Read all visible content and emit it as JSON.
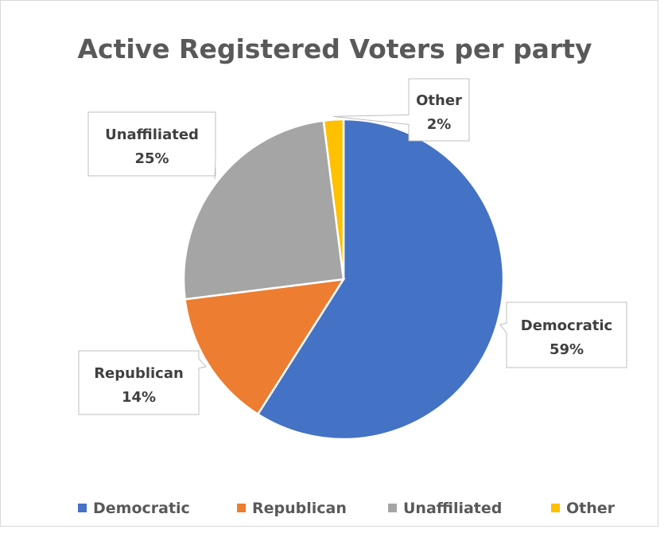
{
  "chart_data": {
    "type": "pie",
    "title": "Active Registered Voters per party",
    "categories": [
      "Democratic",
      "Republican",
      "Unaffiliated",
      "Other"
    ],
    "values": [
      59,
      14,
      25,
      2
    ],
    "value_labels": [
      "59%",
      "14%",
      "25%",
      "2%"
    ],
    "colors": [
      "#4472C4",
      "#ED7D31",
      "#A5A5A5",
      "#FFC000"
    ],
    "legend_position": "bottom",
    "data_labels": "callouts with category name and percentage"
  }
}
